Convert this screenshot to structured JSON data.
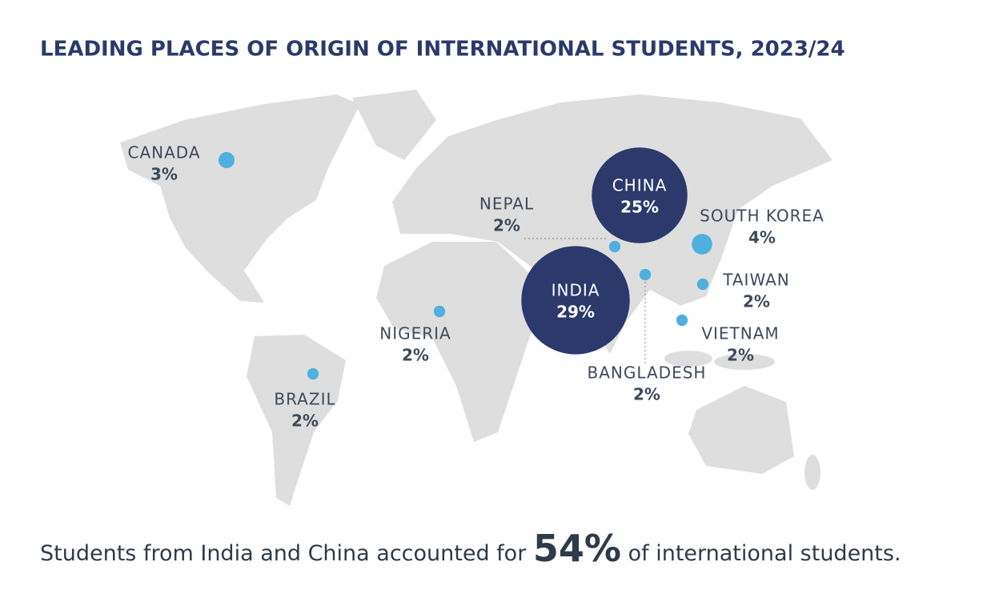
{
  "title": "LEADING PLACES OF ORIGIN OF INTERNATIONAL STUDENTS, 2023/24",
  "places": [
    {
      "name": "CANADA",
      "value": 3,
      "label": "3%"
    },
    {
      "name": "CHINA",
      "value": 25,
      "label": "25%"
    },
    {
      "name": "SOUTH KOREA",
      "value": 4,
      "label": "4%"
    },
    {
      "name": "NEPAL",
      "value": 2,
      "label": "2%"
    },
    {
      "name": "INDIA",
      "value": 29,
      "label": "29%"
    },
    {
      "name": "BANGLADESH",
      "value": 2,
      "label": "2%"
    },
    {
      "name": "TAIWAN",
      "value": 2,
      "label": "2%"
    },
    {
      "name": "VIETNAM",
      "value": 2,
      "label": "2%"
    },
    {
      "name": "NIGERIA",
      "value": 2,
      "label": "2%"
    },
    {
      "name": "BRAZIL",
      "value": 2,
      "label": "2%"
    }
  ],
  "footer": {
    "before": "Students from India and China accounted for",
    "highlight": "54%",
    "after": "of international students."
  }
}
